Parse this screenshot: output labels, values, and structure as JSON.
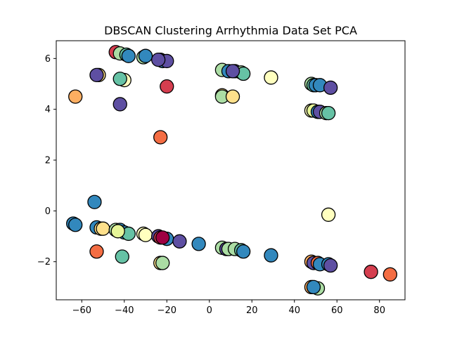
{
  "chart_data": {
    "type": "scatter",
    "title": "DBSCAN Clustering Arrhythmia Data Set PCA",
    "xlabel": "",
    "ylabel": "",
    "xlim": [
      -72,
      92
    ],
    "ylim": [
      -3.5,
      6.7
    ],
    "xticks": [
      -60,
      -40,
      -20,
      0,
      20,
      40,
      60,
      80
    ],
    "yticks": [
      -2,
      0,
      2,
      4,
      6
    ],
    "xtick_labels": [
      "−60",
      "−40",
      "−20",
      "0",
      "20",
      "40",
      "60",
      "80"
    ],
    "ytick_labels": [
      "−2",
      "0",
      "2",
      "4",
      "6"
    ],
    "grid": false,
    "legend": false,
    "points": [
      {
        "x": -44,
        "y": 6.25,
        "color": "#d53e4f"
      },
      {
        "x": -42,
        "y": 6.2,
        "color": "#abdda4"
      },
      {
        "x": -39,
        "y": 6.15,
        "color": "#66c2a5"
      },
      {
        "x": -38,
        "y": 6.1,
        "color": "#3288bd"
      },
      {
        "x": -31,
        "y": 6.05,
        "color": "#abdda4"
      },
      {
        "x": -30,
        "y": 6.1,
        "color": "#3288bd"
      },
      {
        "x": -23,
        "y": 5.95,
        "color": "#e6f598"
      },
      {
        "x": -22,
        "y": 5.9,
        "color": "#3288bd"
      },
      {
        "x": -20,
        "y": 5.9,
        "color": "#5e4fa2"
      },
      {
        "x": -24,
        "y": 5.95,
        "color": "#5e4fa2"
      },
      {
        "x": -52,
        "y": 5.35,
        "color": "#fee08b"
      },
      {
        "x": -53,
        "y": 5.35,
        "color": "#5e4fa2"
      },
      {
        "x": -40,
        "y": 5.15,
        "color": "#ffffbf"
      },
      {
        "x": -42,
        "y": 5.2,
        "color": "#66c2a5"
      },
      {
        "x": -20,
        "y": 4.9,
        "color": "#d53e4f"
      },
      {
        "x": -63,
        "y": 4.5,
        "color": "#fdae61"
      },
      {
        "x": -42,
        "y": 4.2,
        "color": "#5e4fa2"
      },
      {
        "x": -23,
        "y": 2.9,
        "color": "#f46d43"
      },
      {
        "x": 6,
        "y": 5.55,
        "color": "#abdda4"
      },
      {
        "x": 9,
        "y": 5.5,
        "color": "#3288bd"
      },
      {
        "x": 12,
        "y": 5.5,
        "color": "#5e4fa2"
      },
      {
        "x": 15,
        "y": 5.45,
        "color": "#abdda4"
      },
      {
        "x": 16,
        "y": 5.4,
        "color": "#66c2a5"
      },
      {
        "x": 11,
        "y": 5.5,
        "color": "#5e4fa2"
      },
      {
        "x": 29,
        "y": 5.25,
        "color": "#ffffbf"
      },
      {
        "x": 6,
        "y": 4.55,
        "color": "#fee08b"
      },
      {
        "x": 6,
        "y": 4.5,
        "color": "#abdda4"
      },
      {
        "x": 11,
        "y": 4.5,
        "color": "#fee08b"
      },
      {
        "x": 48,
        "y": 5.0,
        "color": "#abdda4"
      },
      {
        "x": 49,
        "y": 4.95,
        "color": "#66c2a5"
      },
      {
        "x": 50,
        "y": 4.95,
        "color": "#3288bd"
      },
      {
        "x": 52,
        "y": 4.95,
        "color": "#3288bd"
      },
      {
        "x": 57,
        "y": 4.85,
        "color": "#5e4fa2"
      },
      {
        "x": 48,
        "y": 3.95,
        "color": "#ffffbf"
      },
      {
        "x": 49,
        "y": 3.95,
        "color": "#e6f598"
      },
      {
        "x": 51,
        "y": 3.9,
        "color": "#3288bd"
      },
      {
        "x": 52,
        "y": 3.9,
        "color": "#5e4fa2"
      },
      {
        "x": 55,
        "y": 3.85,
        "color": "#abdda4"
      },
      {
        "x": 56,
        "y": 3.85,
        "color": "#66c2a5"
      },
      {
        "x": -54,
        "y": 0.35,
        "color": "#3288bd"
      },
      {
        "x": -64,
        "y": -0.5,
        "color": "#3288bd"
      },
      {
        "x": -63,
        "y": -0.55,
        "color": "#3288bd"
      },
      {
        "x": -53,
        "y": -0.65,
        "color": "#3288bd"
      },
      {
        "x": -51,
        "y": -0.7,
        "color": "#fee08b"
      },
      {
        "x": -50,
        "y": -0.7,
        "color": "#fee08b"
      },
      {
        "x": -44,
        "y": -0.75,
        "color": "#abdda4"
      },
      {
        "x": -42,
        "y": -0.75,
        "color": "#3288bd"
      },
      {
        "x": -40,
        "y": -0.85,
        "color": "#3288bd"
      },
      {
        "x": -38,
        "y": -0.9,
        "color": "#66c2a5"
      },
      {
        "x": -43,
        "y": -0.8,
        "color": "#e6f598"
      },
      {
        "x": -31,
        "y": -0.9,
        "color": "#ffffbf"
      },
      {
        "x": -30,
        "y": -0.95,
        "color": "#ffffbf"
      },
      {
        "x": -24,
        "y": -1.0,
        "color": "#5e4fa2"
      },
      {
        "x": -23,
        "y": -1.05,
        "color": "#d53e4f"
      },
      {
        "x": -20,
        "y": -1.1,
        "color": "#3288bd"
      },
      {
        "x": -22,
        "y": -1.05,
        "color": "#9e0142"
      },
      {
        "x": -14,
        "y": -1.2,
        "color": "#5e4fa2"
      },
      {
        "x": -5,
        "y": -1.3,
        "color": "#3288bd"
      },
      {
        "x": 6,
        "y": -1.45,
        "color": "#abdda4"
      },
      {
        "x": 8,
        "y": -1.5,
        "color": "#5e4fa2"
      },
      {
        "x": 9,
        "y": -1.5,
        "color": "#abdda4"
      },
      {
        "x": 12,
        "y": -1.5,
        "color": "#abdda4"
      },
      {
        "x": 15,
        "y": -1.55,
        "color": "#66c2a5"
      },
      {
        "x": 16,
        "y": -1.6,
        "color": "#3288bd"
      },
      {
        "x": 29,
        "y": -1.75,
        "color": "#3288bd"
      },
      {
        "x": -53,
        "y": -1.6,
        "color": "#f46d43"
      },
      {
        "x": -41,
        "y": -1.8,
        "color": "#66c2a5"
      },
      {
        "x": -23,
        "y": -2.05,
        "color": "#fee08b"
      },
      {
        "x": -22,
        "y": -2.05,
        "color": "#abdda4"
      },
      {
        "x": 48,
        "y": -2.0,
        "color": "#fdae61"
      },
      {
        "x": 49,
        "y": -2.05,
        "color": "#5e4fa2"
      },
      {
        "x": 51,
        "y": -2.05,
        "color": "#f46d43"
      },
      {
        "x": 52,
        "y": -2.1,
        "color": "#3288bd"
      },
      {
        "x": 56,
        "y": -2.1,
        "color": "#3288bd"
      },
      {
        "x": 57,
        "y": -2.15,
        "color": "#5e4fa2"
      },
      {
        "x": 56,
        "y": -0.15,
        "color": "#ffffbf"
      },
      {
        "x": 76,
        "y": -2.4,
        "color": "#d53e4f"
      },
      {
        "x": 85,
        "y": -2.5,
        "color": "#f46d43"
      },
      {
        "x": 48,
        "y": -3.0,
        "color": "#fdae61"
      },
      {
        "x": 51,
        "y": -3.05,
        "color": "#abdda4"
      },
      {
        "x": 49,
        "y": -3.0,
        "color": "#3288bd"
      }
    ]
  }
}
